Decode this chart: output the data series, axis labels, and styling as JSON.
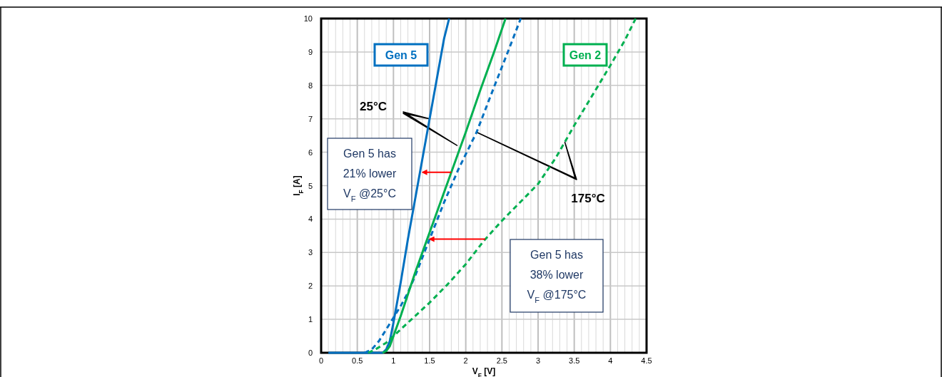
{
  "chart_data": {
    "type": "line",
    "xlabel": "V$_{F}$ [V]",
    "ylabel": "I$_{F}$ [A]",
    "xlim": [
      0,
      4.5
    ],
    "ylim": [
      0,
      10
    ],
    "xticks": [
      0,
      0.5,
      1,
      1.5,
      2,
      2.5,
      3,
      3.5,
      4,
      4.5
    ],
    "yticks": [
      0,
      1,
      2,
      3,
      4,
      5,
      6,
      7,
      8,
      9,
      10
    ],
    "grid": true,
    "series": [
      {
        "name": "Gen 5",
        "color": "#0070c0",
        "line_style": "solid",
        "x": [
          0.1,
          0.85,
          0.9,
          0.95,
          1.0,
          1.1,
          1.2,
          1.3,
          1.4,
          1.5,
          1.6,
          1.7,
          1.77
        ],
        "values": [
          0,
          0,
          0.1,
          0.35,
          0.9,
          2.1,
          3.4,
          4.6,
          5.8,
          7.0,
          8.2,
          9.4,
          10
        ]
      },
      {
        "color": "#0070c0",
        "line_style": "dashed",
        "x": [
          0.6,
          0.7,
          0.8,
          0.9,
          1.0,
          1.1,
          1.2,
          1.3,
          1.4,
          1.5,
          1.7,
          1.9,
          2.15,
          2.4,
          2.6,
          2.76
        ],
        "values": [
          0,
          0.1,
          0.35,
          0.7,
          1.05,
          1.4,
          1.8,
          2.3,
          2.85,
          3.4,
          4.5,
          5.5,
          6.6,
          8.0,
          9.1,
          10
        ]
      },
      {
        "name": "Gen 2",
        "color": "#00b050",
        "line_style": "solid",
        "x": [
          0.85,
          0.9,
          0.95,
          1.0,
          1.1,
          1.2,
          1.3,
          1.4,
          1.6,
          1.8,
          2.0,
          2.2,
          2.4,
          2.55
        ],
        "values": [
          0,
          0.05,
          0.2,
          0.5,
          1.1,
          1.75,
          2.4,
          3.0,
          4.2,
          5.4,
          6.6,
          7.85,
          9.05,
          10
        ]
      },
      {
        "color": "#00b050",
        "line_style": "dashed",
        "x": [
          0.65,
          0.75,
          0.9,
          1.0,
          1.25,
          1.5,
          1.75,
          2.0,
          2.25,
          2.5,
          2.75,
          3.0,
          3.25,
          3.5,
          3.75,
          4.0,
          4.2,
          4.35
        ],
        "values": [
          0,
          0.1,
          0.3,
          0.5,
          1.0,
          1.5,
          2.05,
          2.65,
          3.35,
          3.95,
          4.5,
          5.05,
          5.85,
          6.8,
          7.7,
          8.6,
          9.35,
          10
        ]
      }
    ],
    "annotations": [
      "25°C",
      "175°C",
      "Gen 5 has\n21% lower\nV$_{F}$ @25°C",
      "Gen 5 has\n38% lower\nV$_{F}$ @175°C"
    ]
  }
}
